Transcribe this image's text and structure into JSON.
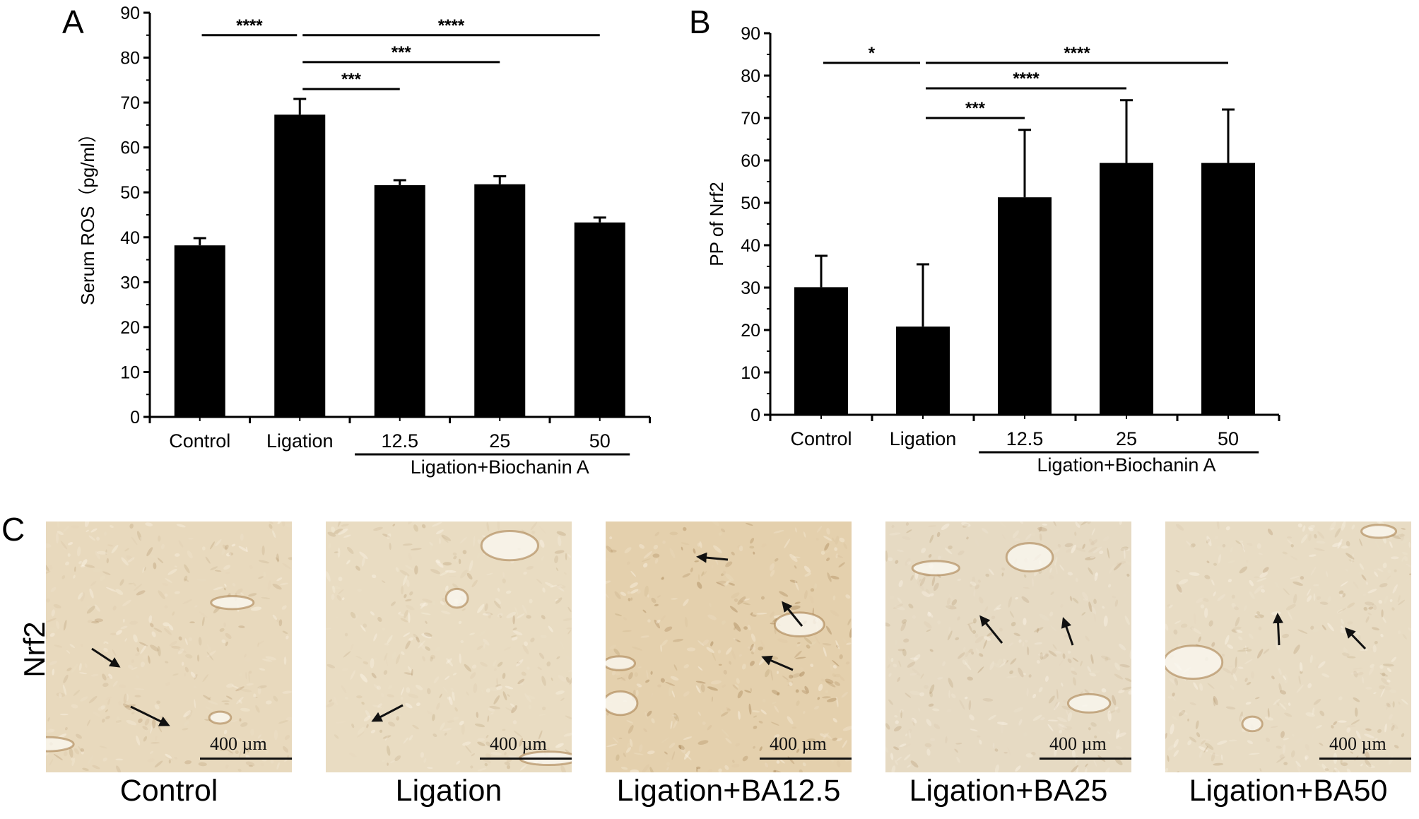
{
  "panels": {
    "a_label": "A",
    "b_label": "B",
    "c_label": "C"
  },
  "chart_data": [
    {
      "type": "bar",
      "ylabel": "Serum ROS（pg/ml）",
      "ylim": [
        0,
        90
      ],
      "yticks": [
        0,
        10,
        20,
        30,
        40,
        50,
        60,
        70,
        80,
        90
      ],
      "categories": [
        "Control",
        "Ligation",
        "12.5",
        "25",
        "50"
      ],
      "values": [
        38.2,
        67.3,
        51.6,
        51.8,
        43.3
      ],
      "errors": [
        1.6,
        3.5,
        1.1,
        1.8,
        1.1
      ],
      "group_label": "Ligation+Biochanin A",
      "significance": [
        {
          "from": 0,
          "to": 1,
          "y": 85,
          "text": "****"
        },
        {
          "from": 1,
          "to": 4,
          "y": 85,
          "text": "****"
        },
        {
          "from": 1,
          "to": 3,
          "y": 79,
          "text": "***"
        },
        {
          "from": 1,
          "to": 2,
          "y": 73,
          "text": "***"
        }
      ]
    },
    {
      "type": "bar",
      "ylabel": "PP of Nrf2",
      "ylim": [
        0,
        90
      ],
      "yticks": [
        0,
        10,
        20,
        30,
        40,
        50,
        60,
        70,
        80,
        90
      ],
      "categories": [
        "Control",
        "Ligation",
        "12.5",
        "25",
        "50"
      ],
      "values": [
        30.1,
        20.8,
        51.3,
        59.4,
        59.4
      ],
      "errors": [
        7.4,
        14.7,
        15.9,
        14.8,
        12.6
      ],
      "group_label": "Ligation+Biochanin A",
      "significance": [
        {
          "from": 0,
          "to": 1,
          "y": 83,
          "text": "*"
        },
        {
          "from": 1,
          "to": 4,
          "y": 83,
          "text": "****"
        },
        {
          "from": 1,
          "to": 3,
          "y": 77,
          "text": "****"
        },
        {
          "from": 1,
          "to": 2,
          "y": 70,
          "text": "***"
        }
      ]
    }
  ],
  "micrographs": {
    "row_label": "Nrf2",
    "scale_text": "400 µm",
    "captions": [
      "Control",
      "Ligation",
      "Ligation+BA12.5",
      "Ligation+BA25",
      "Ligation+BA50"
    ],
    "tissue_colors": [
      "#e8d9bd",
      "#e9dcc2",
      "#e4d0ad",
      "#e6dac3",
      "#e8dcc4"
    ]
  }
}
